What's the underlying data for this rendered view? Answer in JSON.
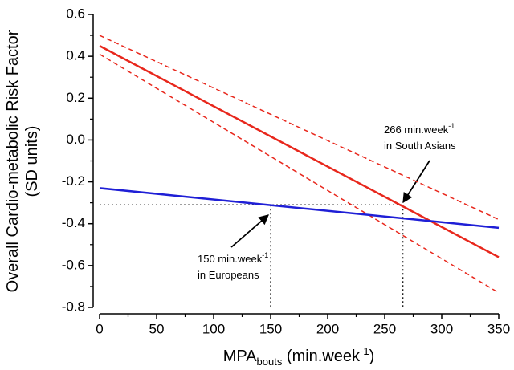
{
  "chart_data": {
    "type": "line",
    "xlabel": {
      "main": "MPA",
      "sub": "bouts",
      "rest": " (min.week",
      "sup": "-1",
      "end": ")"
    },
    "ylabel": [
      "Overall Cardio-metabolic Risk Factor",
      "(SD units)"
    ],
    "xlim": [
      0,
      350
    ],
    "ylim": [
      -0.8,
      0.6
    ],
    "xticks": [
      0,
      50,
      100,
      150,
      200,
      250,
      300,
      350
    ],
    "yticks": [
      0.6,
      0.4,
      0.2,
      {
        "value": 0,
        "label": "0.0"
      },
      -0.2,
      -0.4,
      -0.6,
      -0.8
    ],
    "xminorticks": [
      25,
      75,
      125,
      175,
      225,
      275,
      325
    ],
    "yminorticks": [
      0.5,
      0.3,
      0.1,
      -0.1,
      -0.3,
      -0.5,
      -0.7
    ],
    "series": [
      {
        "color": "#e8271c",
        "dash": false,
        "x": [
          0,
          350
        ],
        "values": [
          0.45,
          -0.56
        ]
      },
      {
        "color": "#e8271c",
        "dash": true,
        "x": [
          0,
          350
        ],
        "values": [
          0.5,
          -0.38
        ]
      },
      {
        "color": "#e8271c",
        "dash": true,
        "x": [
          0,
          350
        ],
        "values": [
          0.41,
          -0.73
        ]
      },
      {
        "color": "#1f1fd6",
        "dash": false,
        "x": [
          0,
          350
        ],
        "values": [
          -0.23,
          -0.42
        ]
      }
    ],
    "reference_lines": [
      {
        "x": [
          0,
          266
        ],
        "values": [
          -0.31,
          -0.31
        ]
      },
      {
        "x": [
          150,
          150
        ],
        "values": [
          -0.31,
          -0.8
        ]
      },
      {
        "x": [
          266,
          266
        ],
        "values": [
          -0.31,
          -0.8
        ]
      }
    ],
    "annotations": [
      {
        "text": "266 min.week",
        "sup": "-1",
        "line2": "in South Asians"
      },
      {
        "text": "150 min.week",
        "sup": "-1",
        "line2": "in Europeans"
      }
    ]
  }
}
